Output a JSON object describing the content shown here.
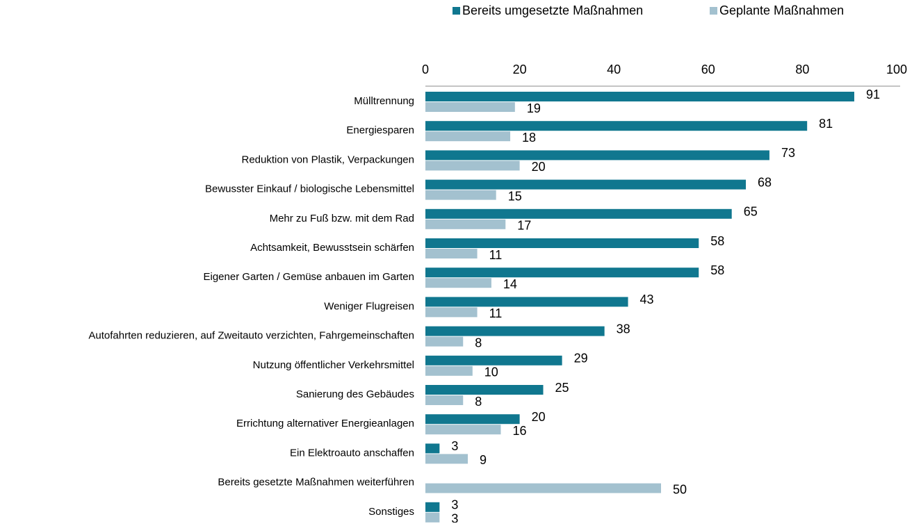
{
  "chart_data": {
    "type": "hbar",
    "categories": [
      "Mülltrennung",
      "Energiesparen",
      "Reduktion von Plastik, Verpackungen",
      "Bewusster Einkauf / biologische Lebensmittel",
      "Mehr zu Fuß bzw. mit dem Rad",
      "Achtsamkeit, Bewusstsein schärfen",
      "Eigener Garten / Gemüse anbauen im Garten",
      "Weniger Flugreisen",
      "Autofahrten reduzieren, auf Zweitauto verzichten, Fahrgemeinschaften",
      "Nutzung öffentlicher Verkehrsmittel",
      "Sanierung des Gebäudes",
      "Errichtung alternativer Energieanlagen",
      "Ein Elektroauto anschaffen",
      "Bereits gesetzte Maßnahmen weiterführen",
      "Sonstiges"
    ],
    "series": [
      {
        "name": "Bereits umgesetzte Maßnahmen",
        "color": "#10778f",
        "values": [
          91,
          81,
          73,
          68,
          65,
          58,
          58,
          43,
          38,
          29,
          25,
          20,
          3,
          null,
          3
        ]
      },
      {
        "name": "Geplante Maßnahmen",
        "color": "#a3c1cf",
        "values": [
          19,
          18,
          20,
          15,
          17,
          11,
          14,
          11,
          8,
          10,
          8,
          16,
          9,
          50,
          3
        ]
      }
    ],
    "xlim": [
      0,
      100
    ],
    "xticks": [
      0,
      20,
      40,
      60,
      80,
      100
    ],
    "legend": "top"
  }
}
